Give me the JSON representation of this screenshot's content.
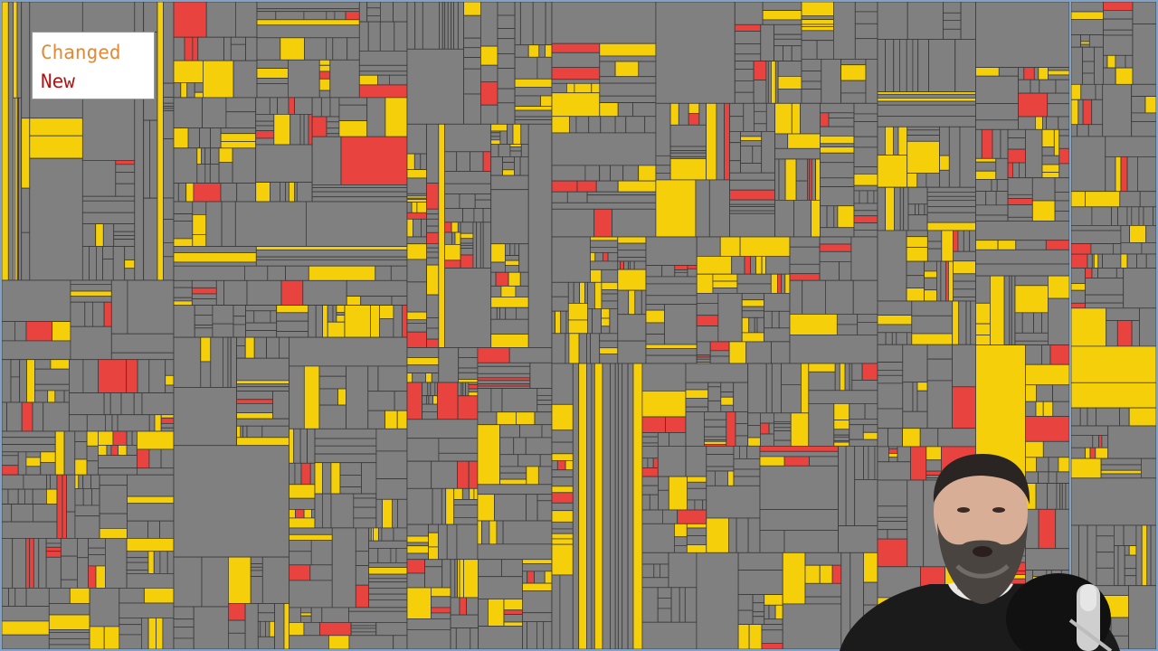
{
  "legend": {
    "changed_label": "Changed",
    "new_label": "New",
    "changed_text_color": "#e08a3a",
    "new_text_color": "#b01515"
  },
  "treemap": {
    "colors": {
      "unchanged": "#808080",
      "changed": "#f5cf0a",
      "new": "#e8433f",
      "border": "#3a3a3a",
      "region_divider": "#7fa2c6"
    },
    "seed": 20240517,
    "changed_ratio": 0.18,
    "new_ratio": 0.07
  },
  "webcam": {
    "subject": "presenter-with-beard",
    "microphone": "desk-microphone"
  }
}
